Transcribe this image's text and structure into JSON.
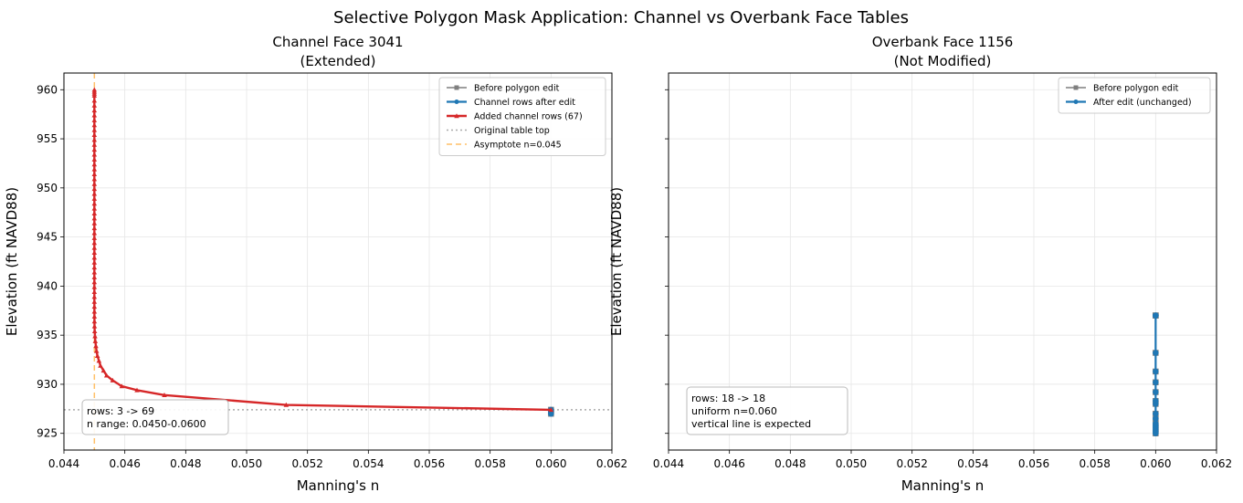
{
  "figure_title": "Selective Polygon Mask Application: Channel vs Overbank Face Tables",
  "colors": {
    "before": "#7f7f7f",
    "after": "#1f77b4",
    "added": "#d62728",
    "table_top": "#aaaaaa",
    "asymptote": "#ffbf66",
    "grid": "#e6e6e6"
  },
  "chart_data": [
    {
      "type": "line",
      "title_line1": "Channel Face 3041",
      "title_line2": "(Extended)",
      "xlabel": "Manning's n",
      "ylabel": "Elevation (ft NAVD88)",
      "xlim": [
        0.044,
        0.062
      ],
      "ylim": [
        923.3,
        961.7
      ],
      "x_ticks": [
        0.044,
        0.046,
        0.048,
        0.05,
        0.052,
        0.054,
        0.056,
        0.058,
        0.06,
        0.062
      ],
      "x_tick_labels": [
        "0.044",
        "0.046",
        "0.048",
        "0.050",
        "0.052",
        "0.054",
        "0.056",
        "0.058",
        "0.060",
        "0.062"
      ],
      "y_ticks": [
        925,
        930,
        935,
        940,
        945,
        950,
        955,
        960
      ],
      "y_tick_labels": [
        "925",
        "930",
        "935",
        "940",
        "945",
        "950",
        "955",
        "960"
      ],
      "grid": true,
      "legend_position": "upper right",
      "series": [
        {
          "name": "Before polygon edit",
          "style": "before",
          "x": [
            0.06,
            0.06,
            0.06
          ],
          "y": [
            927.0,
            927.2,
            927.4
          ]
        },
        {
          "name": "Channel rows after edit",
          "style": "after",
          "x": [
            0.06,
            0.06,
            0.06
          ],
          "y": [
            927.0,
            927.2,
            927.4
          ]
        },
        {
          "name": "Added channel rows (67)",
          "style": "added",
          "x": [
            0.06,
            0.0513,
            0.0473,
            0.0464,
            0.0459,
            0.0456,
            0.0454,
            0.0453,
            0.0452,
            0.04515,
            0.0451,
            0.04507,
            0.04505,
            0.04503,
            0.04502,
            0.04501,
            0.045005,
            0.045003,
            0.045002,
            0.045001,
            0.045001,
            0.045,
            0.045,
            0.045,
            0.045,
            0.045,
            0.045,
            0.045,
            0.045,
            0.045,
            0.045,
            0.045,
            0.045,
            0.045,
            0.045,
            0.045,
            0.045,
            0.045,
            0.045,
            0.045,
            0.045,
            0.045,
            0.045,
            0.045,
            0.045,
            0.045,
            0.045,
            0.045,
            0.045,
            0.045,
            0.045,
            0.045,
            0.045,
            0.045,
            0.045,
            0.045,
            0.045,
            0.045,
            0.045,
            0.045,
            0.045,
            0.045,
            0.045,
            0.045,
            0.045,
            0.045,
            0.045
          ],
          "y": [
            927.4,
            927.9,
            928.9,
            929.4,
            929.8,
            930.4,
            930.9,
            931.4,
            931.9,
            932.4,
            932.9,
            933.4,
            933.9,
            934.4,
            934.9,
            935.4,
            935.9,
            936.4,
            936.9,
            937.4,
            937.9,
            938.4,
            938.9,
            939.4,
            939.9,
            940.4,
            940.9,
            941.4,
            941.9,
            942.4,
            942.9,
            943.4,
            943.9,
            944.4,
            944.9,
            945.4,
            945.9,
            946.4,
            946.9,
            947.4,
            947.9,
            948.4,
            948.9,
            949.4,
            949.9,
            950.4,
            950.9,
            951.4,
            951.9,
            952.4,
            952.9,
            953.4,
            953.9,
            954.4,
            954.9,
            955.4,
            955.9,
            956.4,
            956.9,
            957.4,
            957.9,
            958.4,
            958.9,
            959.4,
            959.6,
            959.8,
            960.0
          ]
        }
      ],
      "reference_lines": [
        {
          "name": "Original table top",
          "orientation": "horizontal",
          "value": 927.4,
          "style": "table_top"
        },
        {
          "name": "Asymptote n=0.045",
          "orientation": "vertical",
          "value": 0.045,
          "style": "asymptote"
        }
      ],
      "legend": [
        {
          "label": "Before polygon edit",
          "style": "before"
        },
        {
          "label": "Channel rows after edit",
          "style": "after"
        },
        {
          "label": "Added channel rows (67)",
          "style": "added"
        },
        {
          "label": "Original table top",
          "style": "table_top"
        },
        {
          "label": "Asymptote n=0.045",
          "style": "asymptote"
        }
      ],
      "annotation_lines": [
        "rows: 3 -> 69",
        "n range: 0.0450-0.0600"
      ],
      "annotation_position": "lower left"
    },
    {
      "type": "line",
      "title_line1": "Overbank Face 1156",
      "title_line2": "(Not Modified)",
      "xlabel": "Manning's n",
      "ylabel": "Elevation (ft NAVD88)",
      "xlim": [
        0.044,
        0.062
      ],
      "ylim": [
        923.3,
        961.7
      ],
      "x_ticks": [
        0.044,
        0.046,
        0.048,
        0.05,
        0.052,
        0.054,
        0.056,
        0.058,
        0.06,
        0.062
      ],
      "x_tick_labels": [
        "0.044",
        "0.046",
        "0.048",
        "0.050",
        "0.052",
        "0.054",
        "0.056",
        "0.058",
        "0.060",
        "0.062"
      ],
      "y_ticks": [
        925,
        930,
        935,
        940,
        945,
        950,
        955,
        960
      ],
      "y_tick_labels": [],
      "grid": true,
      "legend_position": "upper right",
      "series": [
        {
          "name": "Before polygon edit",
          "style": "before",
          "x": [
            0.06,
            0.06,
            0.06,
            0.06,
            0.06,
            0.06,
            0.06,
            0.06,
            0.06,
            0.06,
            0.06,
            0.06,
            0.06,
            0.06,
            0.06,
            0.06,
            0.06,
            0.06
          ],
          "y": [
            925.0,
            925.2,
            925.4,
            925.6,
            925.8,
            926.0,
            926.5,
            927.0,
            928.0,
            928.3,
            929.2,
            930.2,
            931.3,
            933.2,
            937.0,
            937.0,
            937.0,
            937.0
          ]
        },
        {
          "name": "After edit (unchanged)",
          "style": "after",
          "x": [
            0.06,
            0.06,
            0.06,
            0.06,
            0.06,
            0.06,
            0.06,
            0.06,
            0.06,
            0.06,
            0.06,
            0.06,
            0.06,
            0.06,
            0.06,
            0.06,
            0.06,
            0.06
          ],
          "y": [
            925.0,
            925.2,
            925.4,
            925.6,
            925.8,
            926.0,
            926.5,
            927.0,
            928.0,
            928.3,
            929.2,
            930.2,
            931.3,
            933.2,
            937.0,
            937.0,
            937.0,
            937.0
          ]
        }
      ],
      "reference_lines": [],
      "legend": [
        {
          "label": "Before polygon edit",
          "style": "before"
        },
        {
          "label": "After edit (unchanged)",
          "style": "after"
        }
      ],
      "annotation_lines": [
        "rows: 18 -> 18",
        "uniform n=0.060",
        "vertical line is expected"
      ],
      "annotation_position": "lower left"
    }
  ]
}
